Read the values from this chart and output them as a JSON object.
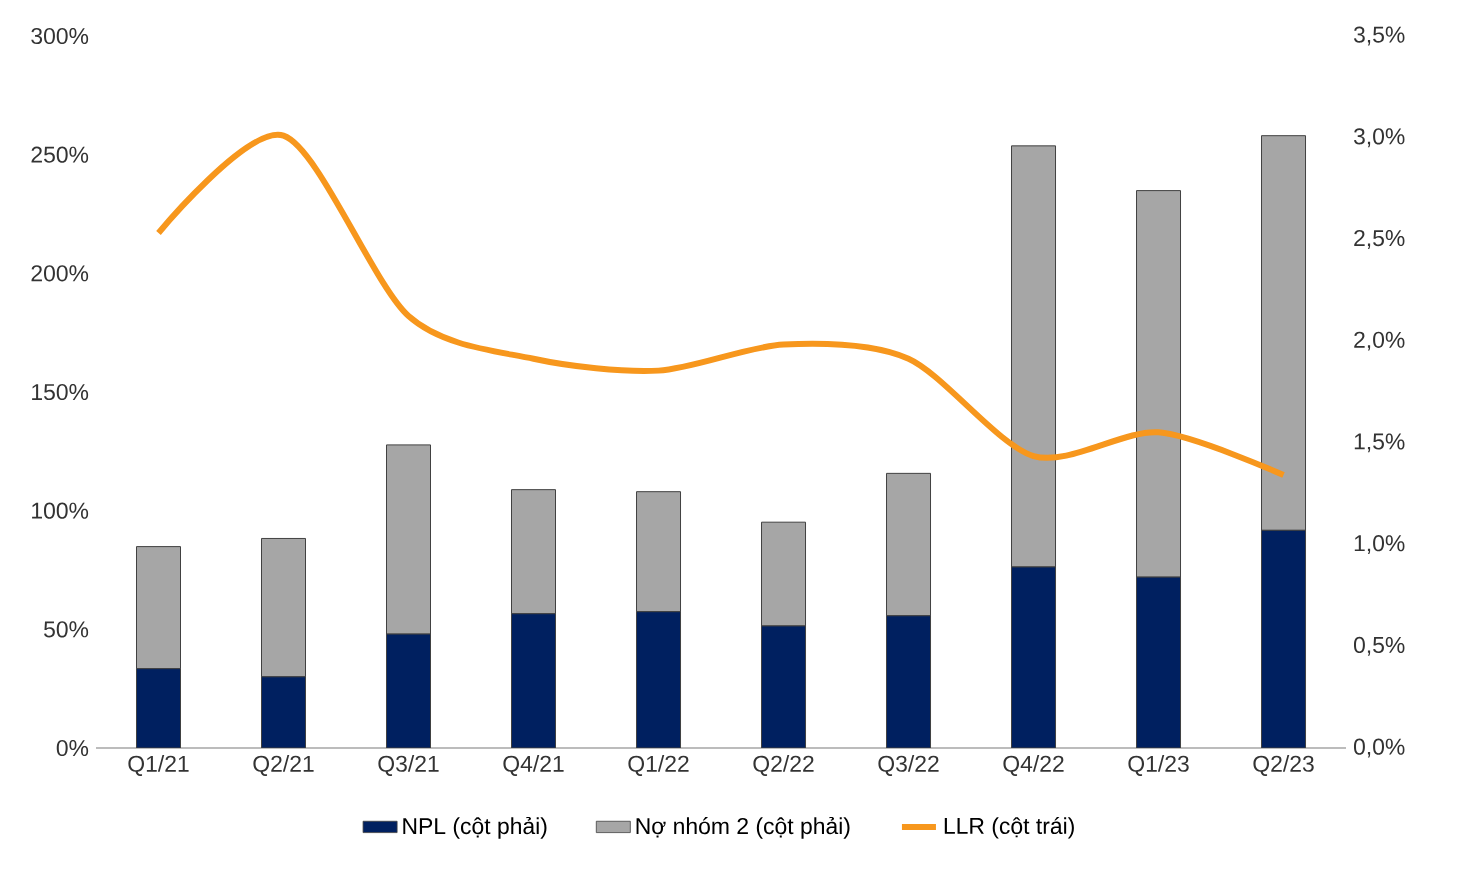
{
  "chart_data": {
    "type": "bar",
    "categories": [
      "Q1/21",
      "Q2/21",
      "Q3/21",
      "Q4/21",
      "Q1/22",
      "Q2/22",
      "Q3/22",
      "Q4/22",
      "Q1/23",
      "Q2/23"
    ],
    "series": [
      {
        "name": "NPL (cột phải)",
        "axis": "y2",
        "color": "#002060",
        "values": [
          0.39,
          0.35,
          0.56,
          0.66,
          0.67,
          0.6,
          0.65,
          0.89,
          0.84,
          1.07
        ]
      },
      {
        "name": "Nợ nhóm 2 (cột phải)",
        "axis": "y2",
        "color": "#a6a6a6",
        "values": [
          0.6,
          0.68,
          0.93,
          0.61,
          0.59,
          0.51,
          0.7,
          2.07,
          1.9,
          1.94
        ]
      },
      {
        "name": "LLR (cột trái)",
        "type": "line",
        "axis": "y",
        "color": "#f7971d",
        "values": [
          217,
          258,
          182,
          164,
          159,
          170,
          164,
          123,
          133,
          115
        ]
      }
    ],
    "stacked": true,
    "ylim": [
      0,
      300
    ],
    "yticks": [
      {
        "value": 0,
        "label": "0%"
      },
      {
        "value": 50,
        "label": "50%"
      },
      {
        "value": 100,
        "label": "100%"
      },
      {
        "value": 150,
        "label": "150%"
      },
      {
        "value": 200,
        "label": "200%"
      },
      {
        "value": 250,
        "label": "250%"
      },
      {
        "value": 300,
        "label": "300%"
      }
    ],
    "y2lim": [
      0,
      3.5
    ],
    "y2ticks": [
      {
        "value": 0,
        "label": "0,0%"
      },
      {
        "value": 0.5,
        "label": "0,5%"
      },
      {
        "value": 1,
        "label": "1,0%"
      },
      {
        "value": 1.5,
        "label": "1,5%"
      },
      {
        "value": 2,
        "label": "2,0%"
      },
      {
        "value": 2.5,
        "label": "2,5%"
      },
      {
        "value": 3,
        "label": "3,0%"
      },
      {
        "value": 3.5,
        "label": "3,5%"
      }
    ],
    "legend": "bottom",
    "marker": "none",
    "line_style": "solid",
    "grid": false
  }
}
